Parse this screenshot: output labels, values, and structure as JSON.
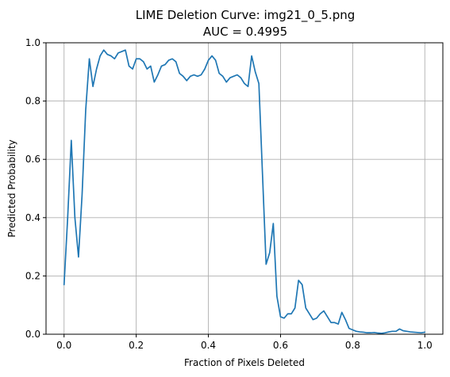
{
  "chart_data": {
    "type": "line",
    "title": "LIME Deletion Curve: img21_0_5.png",
    "subtitle": "AUC = 0.4995",
    "xlabel": "Fraction of Pixels Deleted",
    "ylabel": "Predicted Probability",
    "xlim": [
      -0.05,
      1.05
    ],
    "ylim": [
      0.0,
      1.0
    ],
    "xticks": [
      0.0,
      0.2,
      0.4,
      0.6,
      0.8,
      1.0
    ],
    "xtick_labels": [
      "0.0",
      "0.2",
      "0.4",
      "0.6",
      "0.8",
      "1.0"
    ],
    "yticks": [
      0.0,
      0.2,
      0.4,
      0.6,
      0.8,
      1.0
    ],
    "ytick_labels": [
      "0.0",
      "0.2",
      "0.4",
      "0.6",
      "0.8",
      "1.0"
    ],
    "grid": true,
    "series": [
      {
        "color": "#1f77b4",
        "x": [
          0.0,
          0.01,
          0.02,
          0.03,
          0.04,
          0.05,
          0.06,
          0.07,
          0.08,
          0.09,
          0.1,
          0.11,
          0.12,
          0.13,
          0.14,
          0.15,
          0.16,
          0.17,
          0.18,
          0.19,
          0.2,
          0.21,
          0.22,
          0.23,
          0.24,
          0.25,
          0.26,
          0.27,
          0.28,
          0.29,
          0.3,
          0.31,
          0.32,
          0.33,
          0.34,
          0.35,
          0.36,
          0.37,
          0.38,
          0.39,
          0.4,
          0.41,
          0.42,
          0.43,
          0.44,
          0.45,
          0.46,
          0.47,
          0.48,
          0.49,
          0.5,
          0.51,
          0.52,
          0.53,
          0.54,
          0.55,
          0.56,
          0.57,
          0.58,
          0.59,
          0.6,
          0.61,
          0.62,
          0.63,
          0.64,
          0.65,
          0.66,
          0.67,
          0.68,
          0.69,
          0.7,
          0.71,
          0.72,
          0.73,
          0.74,
          0.75,
          0.76,
          0.77,
          0.78,
          0.79,
          0.8,
          0.81,
          0.82,
          0.83,
          0.84,
          0.85,
          0.86,
          0.87,
          0.88,
          0.89,
          0.9,
          0.91,
          0.92,
          0.93,
          0.94,
          0.95,
          0.96,
          0.97,
          0.98,
          0.99,
          1.0
        ],
        "y": [
          0.17,
          0.4,
          0.665,
          0.4,
          0.265,
          0.48,
          0.77,
          0.945,
          0.85,
          0.91,
          0.955,
          0.975,
          0.96,
          0.955,
          0.945,
          0.965,
          0.97,
          0.975,
          0.92,
          0.91,
          0.945,
          0.945,
          0.935,
          0.91,
          0.92,
          0.865,
          0.89,
          0.92,
          0.925,
          0.94,
          0.945,
          0.935,
          0.895,
          0.885,
          0.87,
          0.885,
          0.89,
          0.885,
          0.89,
          0.91,
          0.94,
          0.955,
          0.94,
          0.895,
          0.885,
          0.865,
          0.88,
          0.885,
          0.89,
          0.88,
          0.86,
          0.85,
          0.955,
          0.9,
          0.86,
          0.55,
          0.24,
          0.28,
          0.38,
          0.13,
          0.06,
          0.055,
          0.07,
          0.07,
          0.09,
          0.185,
          0.17,
          0.09,
          0.07,
          0.05,
          0.055,
          0.07,
          0.08,
          0.06,
          0.04,
          0.04,
          0.035,
          0.075,
          0.05,
          0.02,
          0.015,
          0.01,
          0.008,
          0.007,
          0.005,
          0.005,
          0.006,
          0.004,
          0.003,
          0.005,
          0.008,
          0.01,
          0.01,
          0.018,
          0.012,
          0.01,
          0.008,
          0.007,
          0.006,
          0.005,
          0.007
        ]
      }
    ]
  }
}
